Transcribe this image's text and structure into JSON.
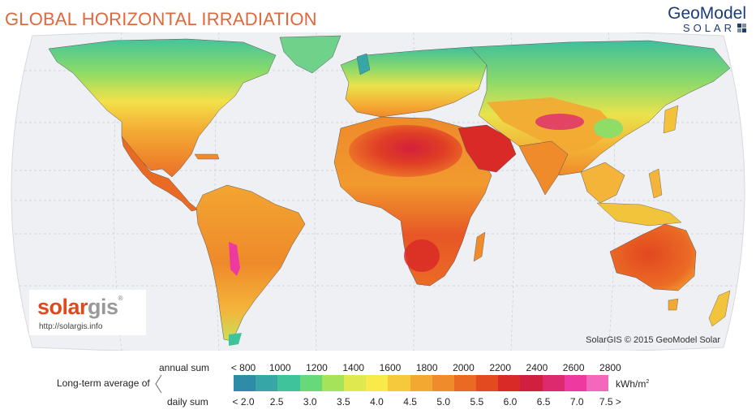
{
  "title": "GLOBAL HORIZONTAL IRRADIATION",
  "brand": {
    "top": "GeoModel",
    "bottom": "SOLAR",
    "mark_colors": [
      "#1c3d73",
      "#7f8ea8",
      "#7f8ea8",
      "#1c3d73"
    ]
  },
  "solargis": {
    "part_a": "solar",
    "part_b": "gis",
    "url": "http://solargis.info"
  },
  "copyright": "SolarGIS © 2015 GeoModel Solar",
  "legend": {
    "annual_label": "annual sum",
    "daily_label": "daily sum",
    "description": "Long-term average of",
    "unit": "kWh/m",
    "unit_sup": "2",
    "annual_ticks": [
      "< 800",
      "1000",
      "1200",
      "1400",
      "1600",
      "1800",
      "2000",
      "2200",
      "2400",
      "2600",
      "2800"
    ],
    "daily_ticks": [
      "< 2.0",
      "2.5",
      "3.0",
      "3.5",
      "4.0",
      "4.5",
      "5.0",
      "5.5",
      "6.0",
      "6.5",
      "7.0",
      "7.5 >"
    ],
    "colors": [
      "#2e8ca8",
      "#37a6a6",
      "#3fc39a",
      "#67d97a",
      "#a5e35b",
      "#dfe94f",
      "#f8ea4a",
      "#f6c93c",
      "#f3a832",
      "#ef8b2a",
      "#ea6a24",
      "#e44a20",
      "#d92a27",
      "#d1203f",
      "#dd2a6f",
      "#ee3aa0",
      "#f468bb"
    ]
  },
  "map": {
    "ocean_color": "#eef0f3",
    "border_color": "#3a3a3a"
  }
}
